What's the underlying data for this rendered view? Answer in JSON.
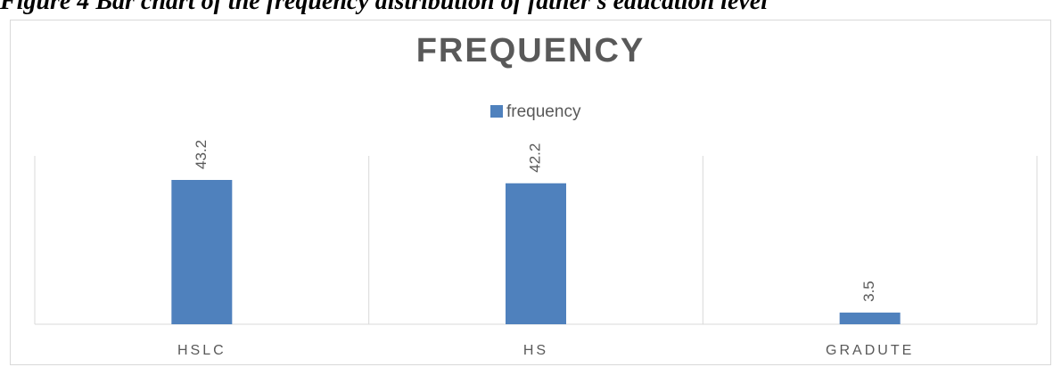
{
  "caption": "Figure 4  Bar chart of the frequency distribution of father's education level",
  "chart_data": {
    "type": "bar",
    "title": "FREQUENCY",
    "categories": [
      "HSLC",
      "HS",
      "GRADUTE"
    ],
    "series": [
      {
        "name": "frequency",
        "values": [
          43.2,
          42.2,
          3.5
        ],
        "color": "#4f81bd"
      }
    ],
    "data_labels": [
      "43.2",
      "42.2",
      "3.5"
    ],
    "xlabel": "",
    "ylabel": "",
    "ylim": [
      0,
      50
    ],
    "grid": "vertical category separators",
    "legend_position": "top",
    "axis_color": "#d9d9d9",
    "title_color": "#595959",
    "text_color": "#595959"
  }
}
